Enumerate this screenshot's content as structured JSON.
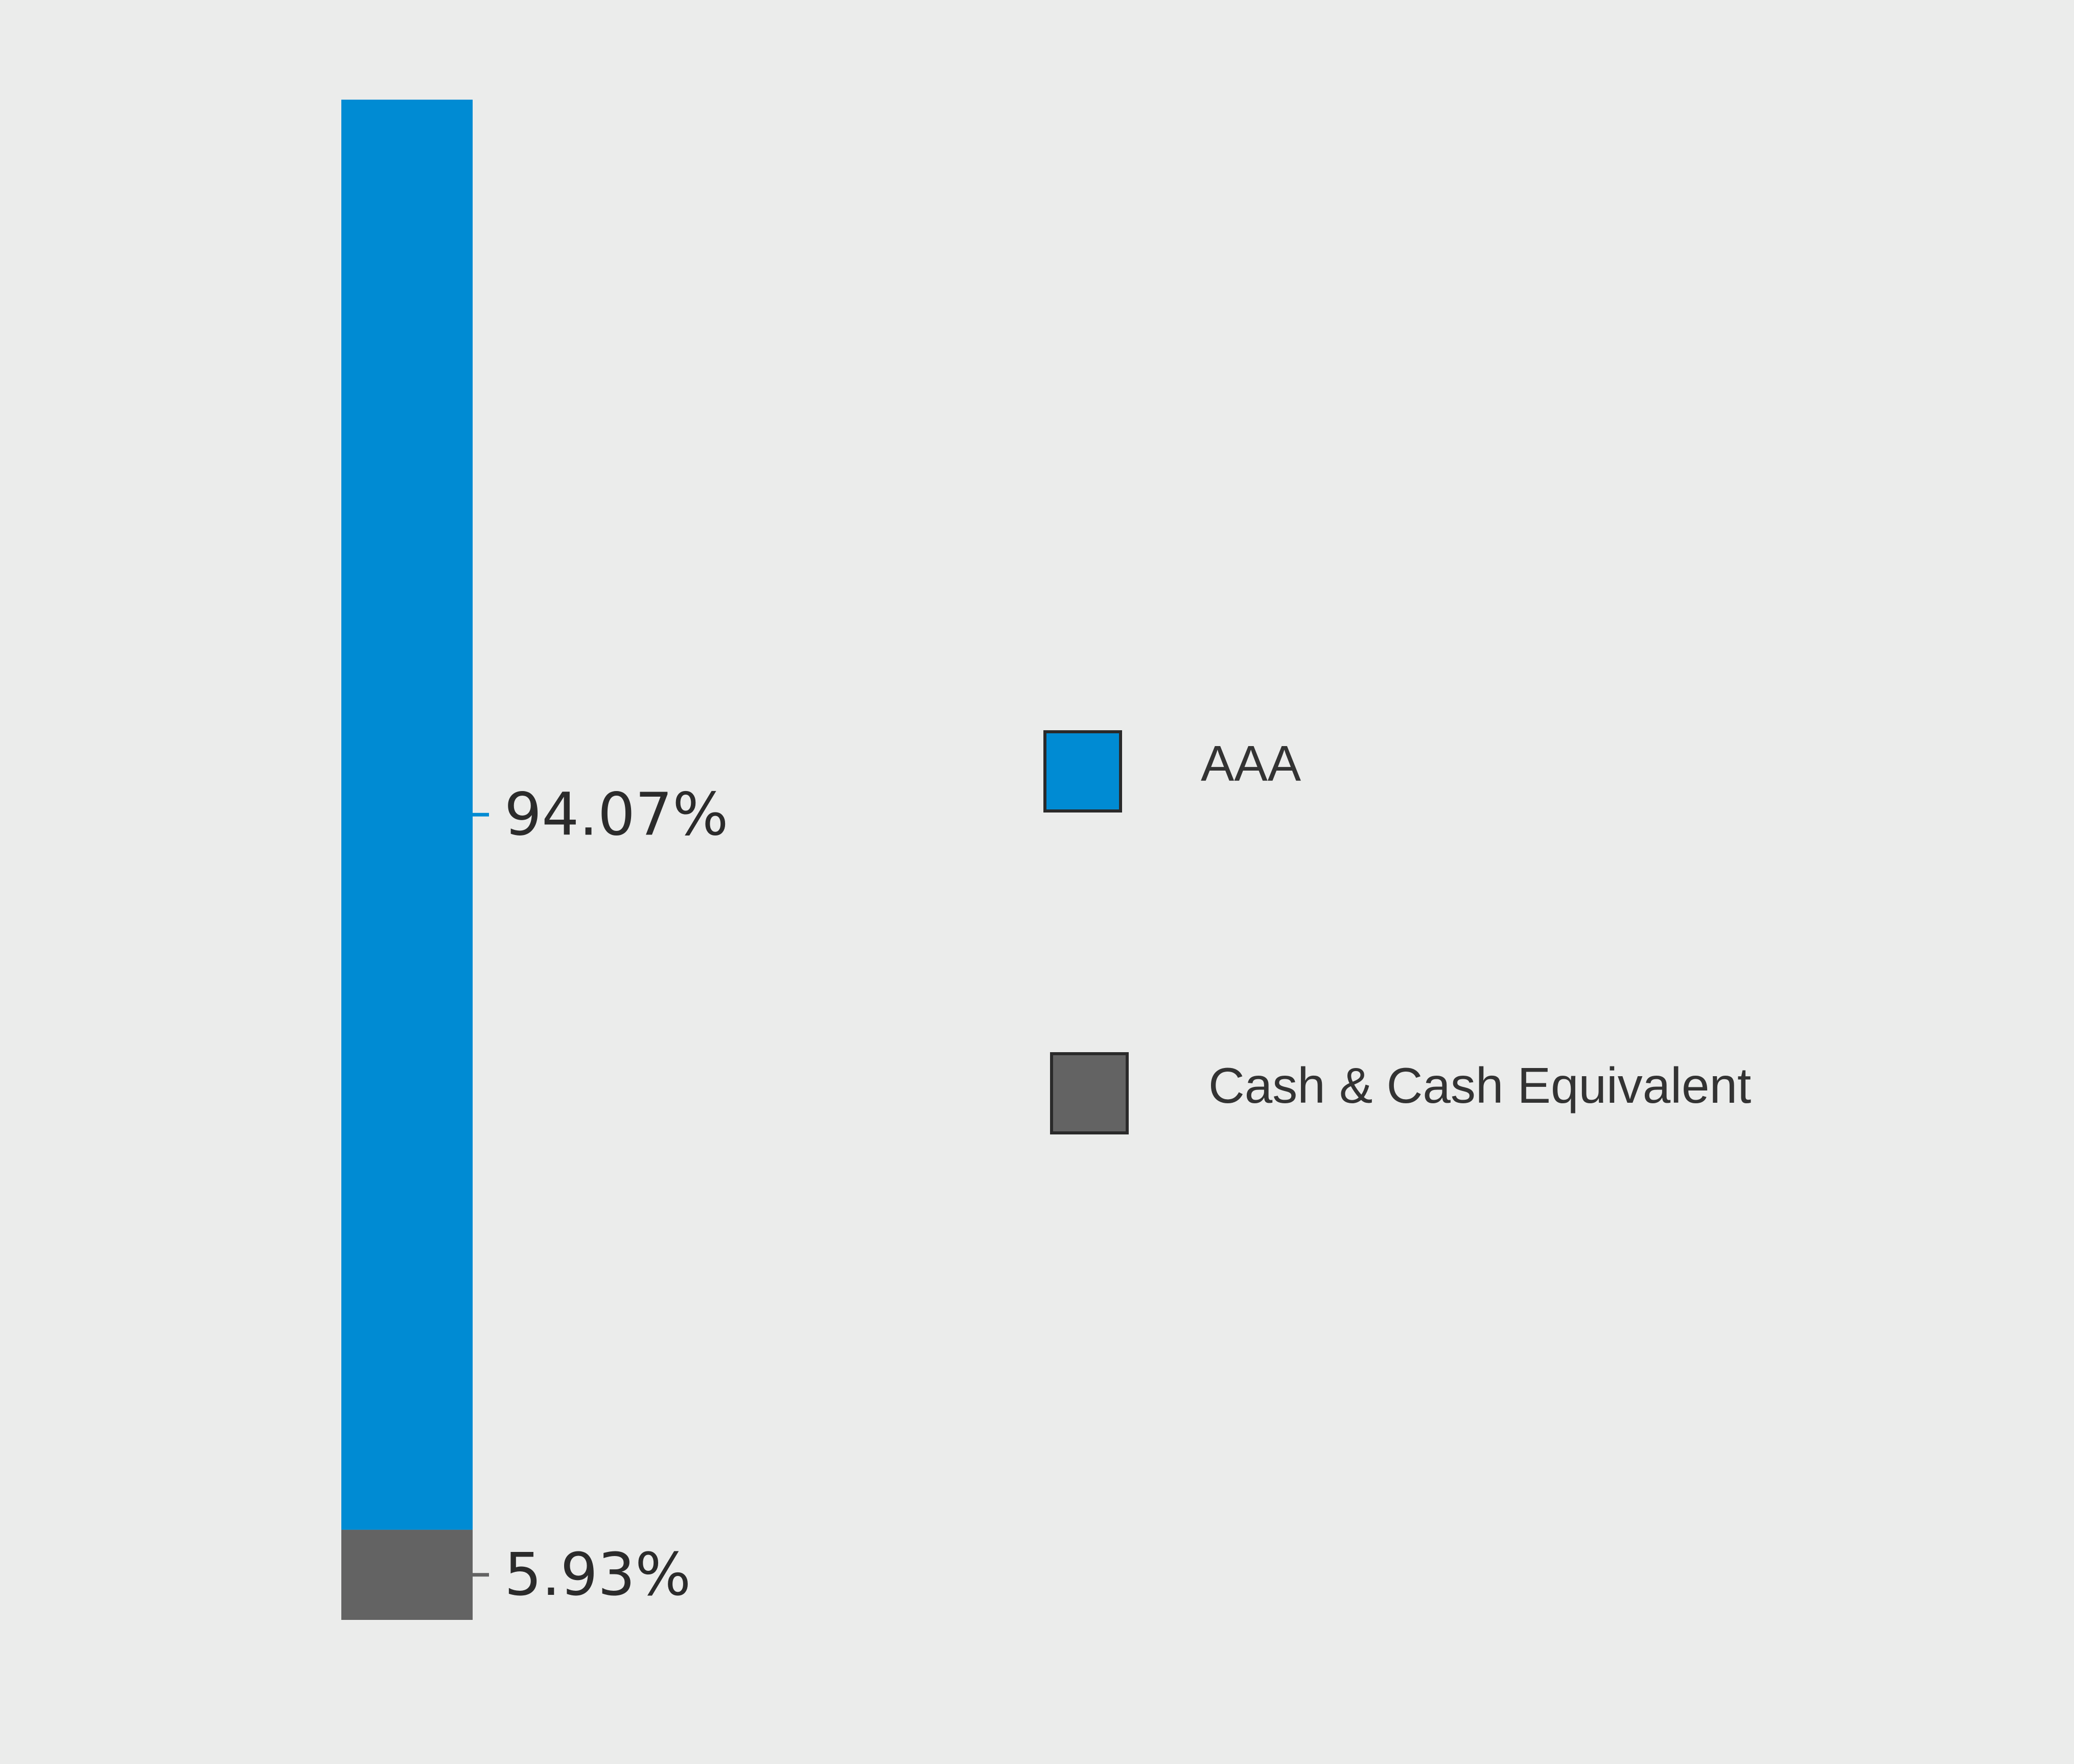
{
  "chart_data": {
    "type": "bar",
    "stacked": true,
    "orientation": "vertical",
    "ylim": [
      0,
      100
    ],
    "series": [
      {
        "name": "Cash & Cash Equivalent",
        "value": 5.93,
        "label": "5.93%",
        "color": "#636363"
      },
      {
        "name": "AAA",
        "value": 94.07,
        "label": "94.07%",
        "color": "#008bd3"
      }
    ],
    "legend": [
      {
        "name": "AAA",
        "color": "#008bd3"
      },
      {
        "name": "Cash & Cash Equivalent",
        "color": "#636363"
      }
    ],
    "legend_position": "right",
    "grid": false
  }
}
